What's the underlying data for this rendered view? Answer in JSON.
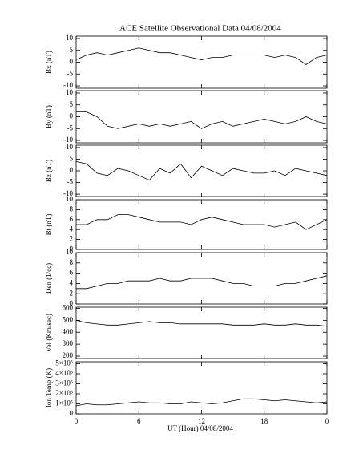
{
  "chart_data": [
    {
      "type": "line",
      "title": "ACE Satellite Observational Data   04/08/2004",
      "ylabel": "Bx (nT)",
      "color": "#000000",
      "x": [
        0,
        1,
        2,
        3,
        4,
        5,
        6,
        7,
        8,
        9,
        10,
        11,
        12,
        13,
        14,
        15,
        16,
        17,
        18,
        19,
        20,
        21,
        22,
        23,
        24
      ],
      "values": [
        1,
        3,
        4,
        3,
        4,
        5,
        6,
        5,
        4,
        4,
        3,
        2,
        1,
        2,
        2,
        3,
        3,
        3,
        3,
        2,
        3,
        2,
        -1,
        2,
        3
      ],
      "xlim": [
        0,
        24
      ],
      "xticks": [
        0,
        6,
        12,
        18,
        24
      ],
      "ylim": [
        -11,
        11
      ],
      "yticks": [
        -10,
        -5,
        0,
        5,
        10
      ]
    },
    {
      "type": "line",
      "ylabel": "By (nT)",
      "color": "#000000",
      "x": [
        0,
        1,
        2,
        3,
        4,
        5,
        6,
        7,
        8,
        9,
        10,
        11,
        12,
        13,
        14,
        15,
        16,
        17,
        18,
        19,
        20,
        21,
        22,
        23,
        24
      ],
      "values": [
        2,
        2,
        0,
        -4,
        -5,
        -4,
        -3,
        -4,
        -3,
        -4,
        -3,
        -2,
        -5,
        -3,
        -2,
        -4,
        -3,
        -2,
        -1,
        -2,
        -3,
        -2,
        0,
        -2,
        -3
      ],
      "xlim": [
        0,
        24
      ],
      "xticks": [
        0,
        6,
        12,
        18,
        24
      ],
      "ylim": [
        -11,
        11
      ],
      "yticks": [
        -10,
        -5,
        0,
        5,
        10
      ]
    },
    {
      "type": "line",
      "ylabel": "Bz (nT)",
      "color": "#000000",
      "x": [
        0,
        1,
        2,
        3,
        4,
        5,
        6,
        7,
        8,
        9,
        10,
        11,
        12,
        13,
        14,
        15,
        16,
        17,
        18,
        19,
        20,
        21,
        22,
        23,
        24
      ],
      "values": [
        4,
        3,
        -1,
        -2,
        1,
        0,
        -2,
        -4,
        1,
        -1,
        3,
        -3,
        2,
        0,
        -2,
        1,
        0,
        -1,
        -1,
        0,
        -2,
        1,
        0,
        -1,
        -2
      ],
      "xlim": [
        0,
        24
      ],
      "xticks": [
        0,
        6,
        12,
        18,
        24
      ],
      "ylim": [
        -11,
        11
      ],
      "yticks": [
        -10,
        -5,
        0,
        5,
        10
      ]
    },
    {
      "type": "line",
      "ylabel": "Bt (nT)",
      "color": "#000000",
      "x": [
        0,
        1,
        2,
        3,
        4,
        5,
        6,
        7,
        8,
        9,
        10,
        11,
        12,
        13,
        14,
        15,
        16,
        17,
        18,
        19,
        20,
        21,
        22,
        23,
        24
      ],
      "values": [
        5,
        5,
        6,
        6,
        7,
        7,
        6.5,
        6,
        5.5,
        5.5,
        5.5,
        5,
        6,
        6.5,
        6,
        5.5,
        5,
        5,
        5,
        4.5,
        5,
        5.5,
        4,
        5,
        6
      ],
      "xlim": [
        0,
        24
      ],
      "xticks": [
        0,
        6,
        12,
        18,
        24
      ],
      "ylim": [
        0,
        10
      ],
      "yticks": [
        0,
        2,
        4,
        6,
        8,
        10
      ]
    },
    {
      "type": "line",
      "ylabel": "Den (1/cc)",
      "color": "#000000",
      "x": [
        0,
        1,
        2,
        3,
        4,
        5,
        6,
        7,
        8,
        9,
        10,
        11,
        12,
        13,
        14,
        15,
        16,
        17,
        18,
        19,
        20,
        21,
        22,
        23,
        24
      ],
      "values": [
        3,
        3,
        3.5,
        4,
        4,
        4.5,
        4.5,
        4.5,
        5,
        4.5,
        4.5,
        5,
        5,
        5,
        4.5,
        4,
        4,
        3.5,
        3.5,
        3.5,
        4,
        4,
        4.5,
        5,
        5.5
      ],
      "xlim": [
        0,
        24
      ],
      "xticks": [
        0,
        6,
        12,
        18,
        24
      ],
      "ylim": [
        0,
        10
      ],
      "yticks": [
        0,
        2,
        4,
        6,
        8,
        10
      ]
    },
    {
      "type": "line",
      "ylabel": "Vel (Km/sec)",
      "color": "#000000",
      "x": [
        0,
        1,
        2,
        3,
        4,
        5,
        6,
        7,
        8,
        9,
        10,
        11,
        12,
        13,
        14,
        15,
        16,
        17,
        18,
        19,
        20,
        21,
        22,
        23,
        24
      ],
      "values": [
        500,
        480,
        470,
        460,
        460,
        470,
        480,
        490,
        480,
        480,
        470,
        470,
        470,
        470,
        470,
        460,
        460,
        460,
        470,
        460,
        460,
        470,
        460,
        460,
        450
      ],
      "xlim": [
        0,
        24
      ],
      "xticks": [
        0,
        6,
        12,
        18,
        24
      ],
      "ylim": [
        180,
        610
      ],
      "yticks": [
        200,
        300,
        400,
        500,
        600
      ]
    },
    {
      "type": "line",
      "ylabel": "Ion Temp (K)",
      "xlabel": "UT (Hour)   04/08/2004",
      "color": "#000000",
      "x": [
        0,
        1,
        2,
        3,
        4,
        5,
        6,
        7,
        8,
        9,
        10,
        11,
        12,
        13,
        14,
        15,
        16,
        17,
        18,
        19,
        20,
        21,
        22,
        23,
        24
      ],
      "values": [
        80000,
        100000,
        90000,
        90000,
        100000,
        110000,
        120000,
        110000,
        110000,
        100000,
        100000,
        120000,
        110000,
        100000,
        110000,
        130000,
        150000,
        150000,
        140000,
        130000,
        140000,
        130000,
        120000,
        110000,
        120000
      ],
      "xlim": [
        0,
        24
      ],
      "xticks": [
        0,
        6,
        12,
        18,
        {
          "value": 24,
          "label": "0"
        }
      ],
      "ylim": [
        0,
        520000
      ],
      "yticks": [
        0,
        {
          "value": 100000,
          "label": "1×10⁵"
        },
        {
          "value": 200000,
          "label": "2×10⁵"
        },
        {
          "value": 300000,
          "label": "3×10⁵"
        },
        {
          "value": 400000,
          "label": "4×10⁵"
        },
        {
          "value": 500000,
          "label": "5×10⁵"
        }
      ]
    }
  ]
}
